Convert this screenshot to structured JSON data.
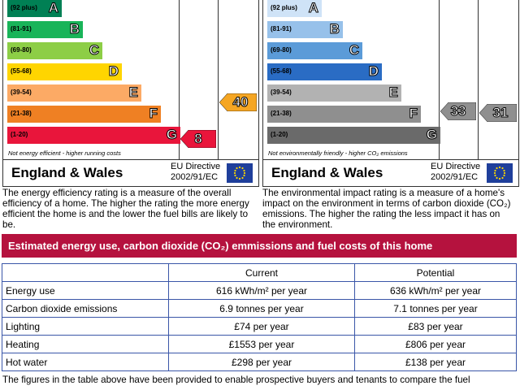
{
  "efficiency_chart": {
    "bands": [
      {
        "range": "(92 plus)",
        "letter": "A",
        "color": "#008054"
      },
      {
        "range": "(81-91)",
        "letter": "B",
        "color": "#19b459"
      },
      {
        "range": "(69-80)",
        "letter": "C",
        "color": "#8dce46"
      },
      {
        "range": "(55-68)",
        "letter": "D",
        "color": "#ffd500"
      },
      {
        "range": "(39-54)",
        "letter": "E",
        "color": "#fcaa65"
      },
      {
        "range": "(21-38)",
        "letter": "F",
        "color": "#ef8023"
      },
      {
        "range": "(1-20)",
        "letter": "G",
        "color": "#e9153b"
      }
    ],
    "note": "Not energy efficient - higher running costs",
    "current": "8",
    "potential": "40",
    "current_color": "#e9153b",
    "potential_color": "#f5a623",
    "footer_title": "England & Wales",
    "directive_line1": "EU Directive",
    "directive_line2": "2002/91/EC"
  },
  "environment_chart": {
    "bands": [
      {
        "range": "(92 plus)",
        "letter": "A",
        "color": "#cfe3f7"
      },
      {
        "range": "(81-91)",
        "letter": "B",
        "color": "#97c1ea"
      },
      {
        "range": "(69-80)",
        "letter": "C",
        "color": "#5b9bd8"
      },
      {
        "range": "(55-68)",
        "letter": "D",
        "color": "#2a6cc4"
      },
      {
        "range": "(39-54)",
        "letter": "E",
        "color": "#b2b2b2"
      },
      {
        "range": "(21-38)",
        "letter": "F",
        "color": "#8f8f8f"
      },
      {
        "range": "(1-20)",
        "letter": "G",
        "color": "#6a6a6a"
      }
    ],
    "note": "Not environmentally friendly - higher CO₂ emissions",
    "current": "33",
    "potential": "31",
    "current_color": "#8f8f8f",
    "potential_color": "#8f8f8f",
    "footer_title": "England & Wales",
    "directive_line1": "EU Directive",
    "directive_line2": "2002/91/EC"
  },
  "desc_efficiency": "The energy efficiency rating is a measure of the overall efficiency of a home. The higher the rating the more energy efficient the home is and the lower the fuel bills are likely to be.",
  "desc_environment": "The environmental impact rating is a measure of a home's impact on the environment in terms of carbon dioxide (CO₂) emissions. The higher the rating the less impact it has on the environment.",
  "banner": "Estimated energy use, carbon dioxide (CO₂) emmissions and fuel costs of this home",
  "table": {
    "headers": [
      "",
      "Current",
      "Potential"
    ],
    "rows": [
      {
        "label": "Energy use",
        "current": "616 kWh/m² per year",
        "potential": "636 kWh/m² per year"
      },
      {
        "label": "Carbon dioxide emissions",
        "current": "6.9 tonnes per year",
        "potential": "7.1 tonnes per year"
      },
      {
        "label": "Lighting",
        "current": "£74 per year",
        "potential": "£83 per year"
      },
      {
        "label": "Heating",
        "current": "£1553 per year",
        "potential": "£806 per year"
      },
      {
        "label": "Hot water",
        "current": "£298 per year",
        "potential": "£138 per year"
      }
    ]
  },
  "bottom_text": "The figures in the table above have been provided to enable prospective buyers and tenants to compare the fuel"
}
